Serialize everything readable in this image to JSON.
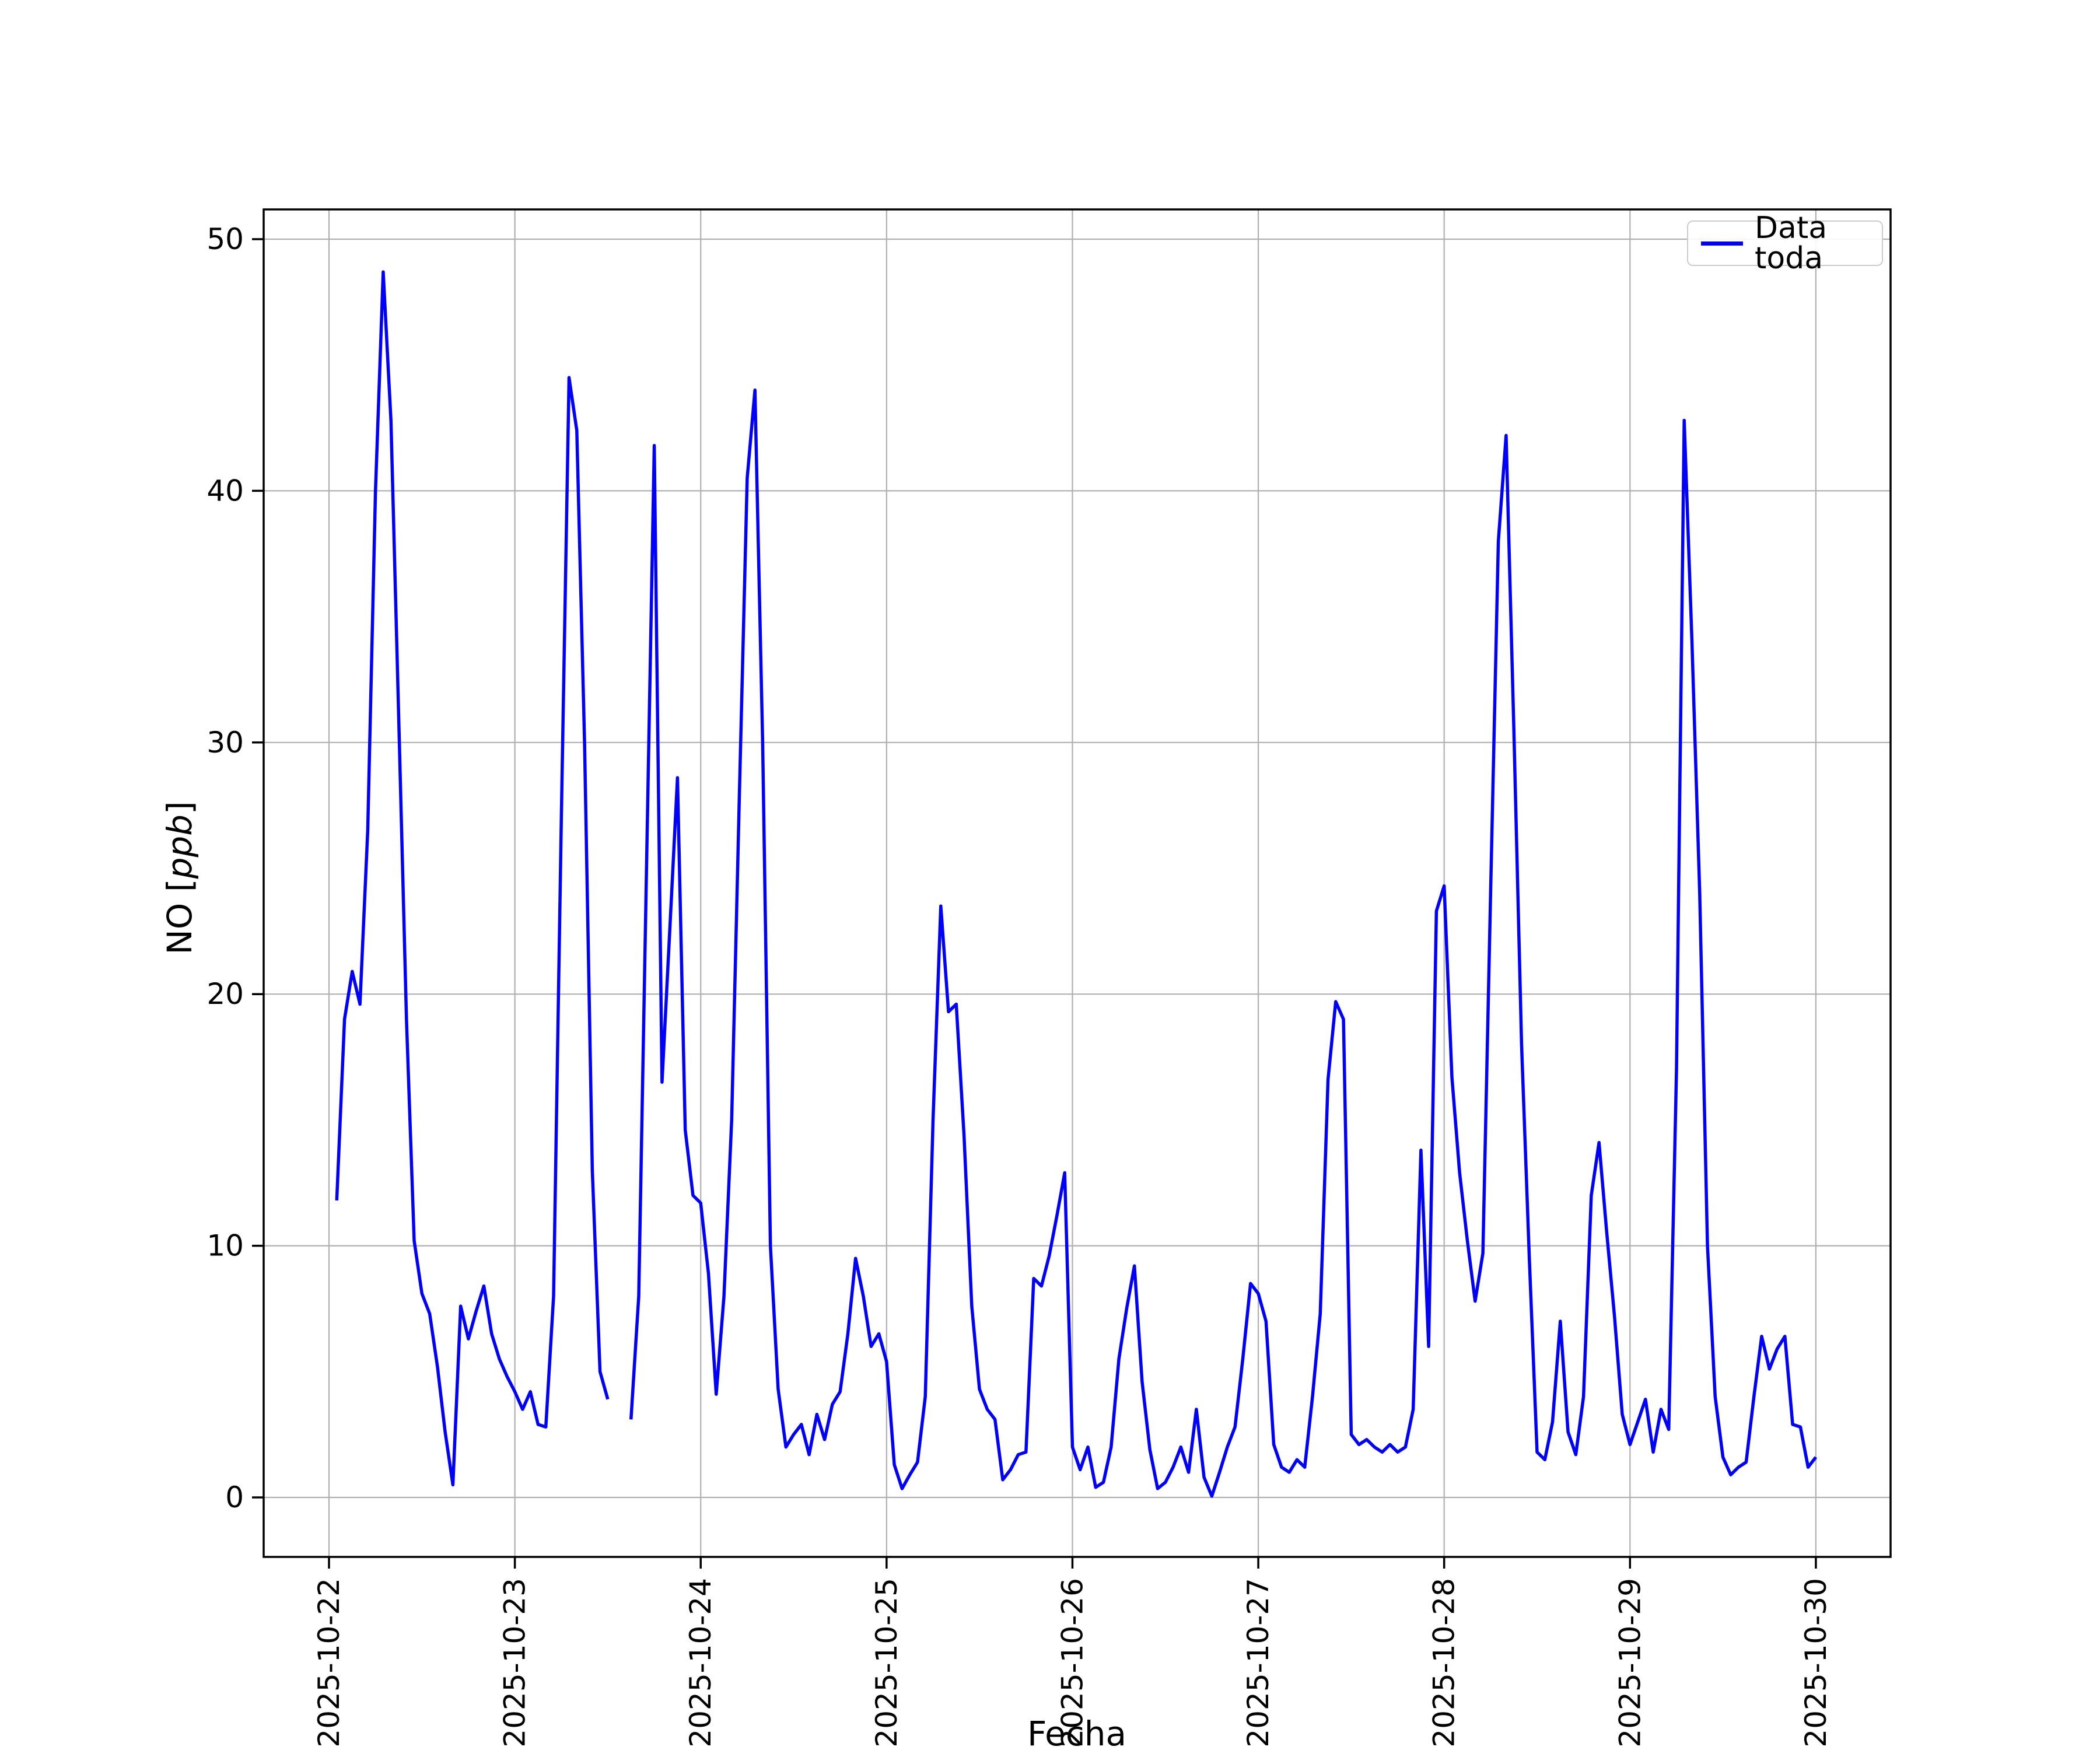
{
  "figure": {
    "background": "#ffffff"
  },
  "legend": {
    "label": "Data toda",
    "line_color": "#0000ff",
    "border_color": "#cccccc"
  },
  "axes": {
    "xlabel": "Fecha",
    "ylabel_full": "NO [ppb]",
    "ylabel_prefix": "NO [",
    "ylabel_italic": "ppb",
    "ylabel_suffix": "]"
  },
  "chart_data": {
    "type": "line",
    "title": "",
    "xlabel": "Fecha",
    "ylabel": "NO [ppb]",
    "legend_position": "upper right",
    "grid": true,
    "grid_color": "#b0b0b0",
    "background": "#ffffff",
    "y_ticks": [
      0,
      10,
      20,
      30,
      40,
      50
    ],
    "ylim": [
      -2.4,
      51.2
    ],
    "x_tick_labels": [
      "2025-10-22",
      "2025-10-23",
      "2025-10-24",
      "2025-10-25",
      "2025-10-26",
      "2025-10-27",
      "2025-10-28",
      "2025-10-29",
      "2025-10-30"
    ],
    "x_unit": "hours since 2025-10-22 00:00, 1 point per hour, null = data gap",
    "xlim_hours": [
      -8.4,
      201.7
    ],
    "series": [
      {
        "name": "Data toda",
        "color": "#0000ff",
        "x_start_hour": 1,
        "x_step_hours": 1,
        "values": [
          11.8,
          19.0,
          20.9,
          19.6,
          26.5,
          40.0,
          48.7,
          42.8,
          31.0,
          19.0,
          10.2,
          8.1,
          7.3,
          5.2,
          2.6,
          0.5,
          7.6,
          6.3,
          7.4,
          8.4,
          6.5,
          5.5,
          4.8,
          4.2,
          3.5,
          4.2,
          2.9,
          2.8,
          8.0,
          27.0,
          44.5,
          42.4,
          30.0,
          13.0,
          5.0,
          3.9,
          null,
          null,
          3.1,
          8.0,
          25.0,
          41.8,
          16.5,
          22.5,
          28.6,
          14.6,
          12.0,
          11.7,
          8.9,
          4.1,
          8.0,
          15.0,
          28.0,
          40.5,
          44.0,
          30.0,
          10.0,
          4.3,
          2.0,
          2.5,
          2.9,
          1.7,
          3.3,
          2.3,
          3.7,
          4.2,
          6.5,
          9.5,
          8.0,
          6.0,
          6.5,
          5.4,
          1.3,
          0.35,
          0.9,
          1.4,
          4.0,
          15.0,
          23.5,
          19.3,
          19.6,
          14.4,
          7.6,
          4.3,
          3.5,
          3.1,
          0.7,
          1.1,
          1.7,
          1.8,
          8.7,
          8.4,
          9.6,
          11.2,
          12.9,
          2.0,
          1.1,
          2.0,
          0.4,
          0.6,
          2.0,
          5.5,
          7.5,
          9.2,
          4.6,
          1.9,
          0.35,
          0.6,
          1.2,
          2.0,
          1.0,
          3.5,
          0.8,
          0.05,
          1.0,
          2.0,
          2.8,
          5.5,
          8.5,
          8.1,
          7.0,
          2.1,
          1.2,
          1.0,
          1.5,
          1.2,
          4.0,
          7.3,
          16.6,
          19.7,
          19.0,
          2.5,
          2.1,
          2.3,
          2.0,
          1.8,
          2.1,
          1.8,
          2.0,
          3.5,
          13.8,
          6.0,
          23.3,
          24.3,
          16.7,
          12.9,
          10.2,
          7.8,
          9.7,
          24.0,
          38.0,
          42.2,
          30.5,
          18.0,
          9.5,
          1.8,
          1.5,
          3.0,
          7.0,
          2.6,
          1.7,
          4.0,
          12.0,
          14.1,
          10.5,
          7.2,
          3.3,
          2.1,
          3.0,
          3.9,
          1.8,
          3.5,
          2.7,
          17.0,
          42.8,
          34.0,
          24.0,
          10.0,
          4.0,
          1.6,
          0.9,
          1.2,
          1.4,
          4.0,
          6.4,
          5.1,
          5.9,
          6.4,
          2.9,
          2.8,
          1.2,
          1.6
        ]
      }
    ]
  }
}
